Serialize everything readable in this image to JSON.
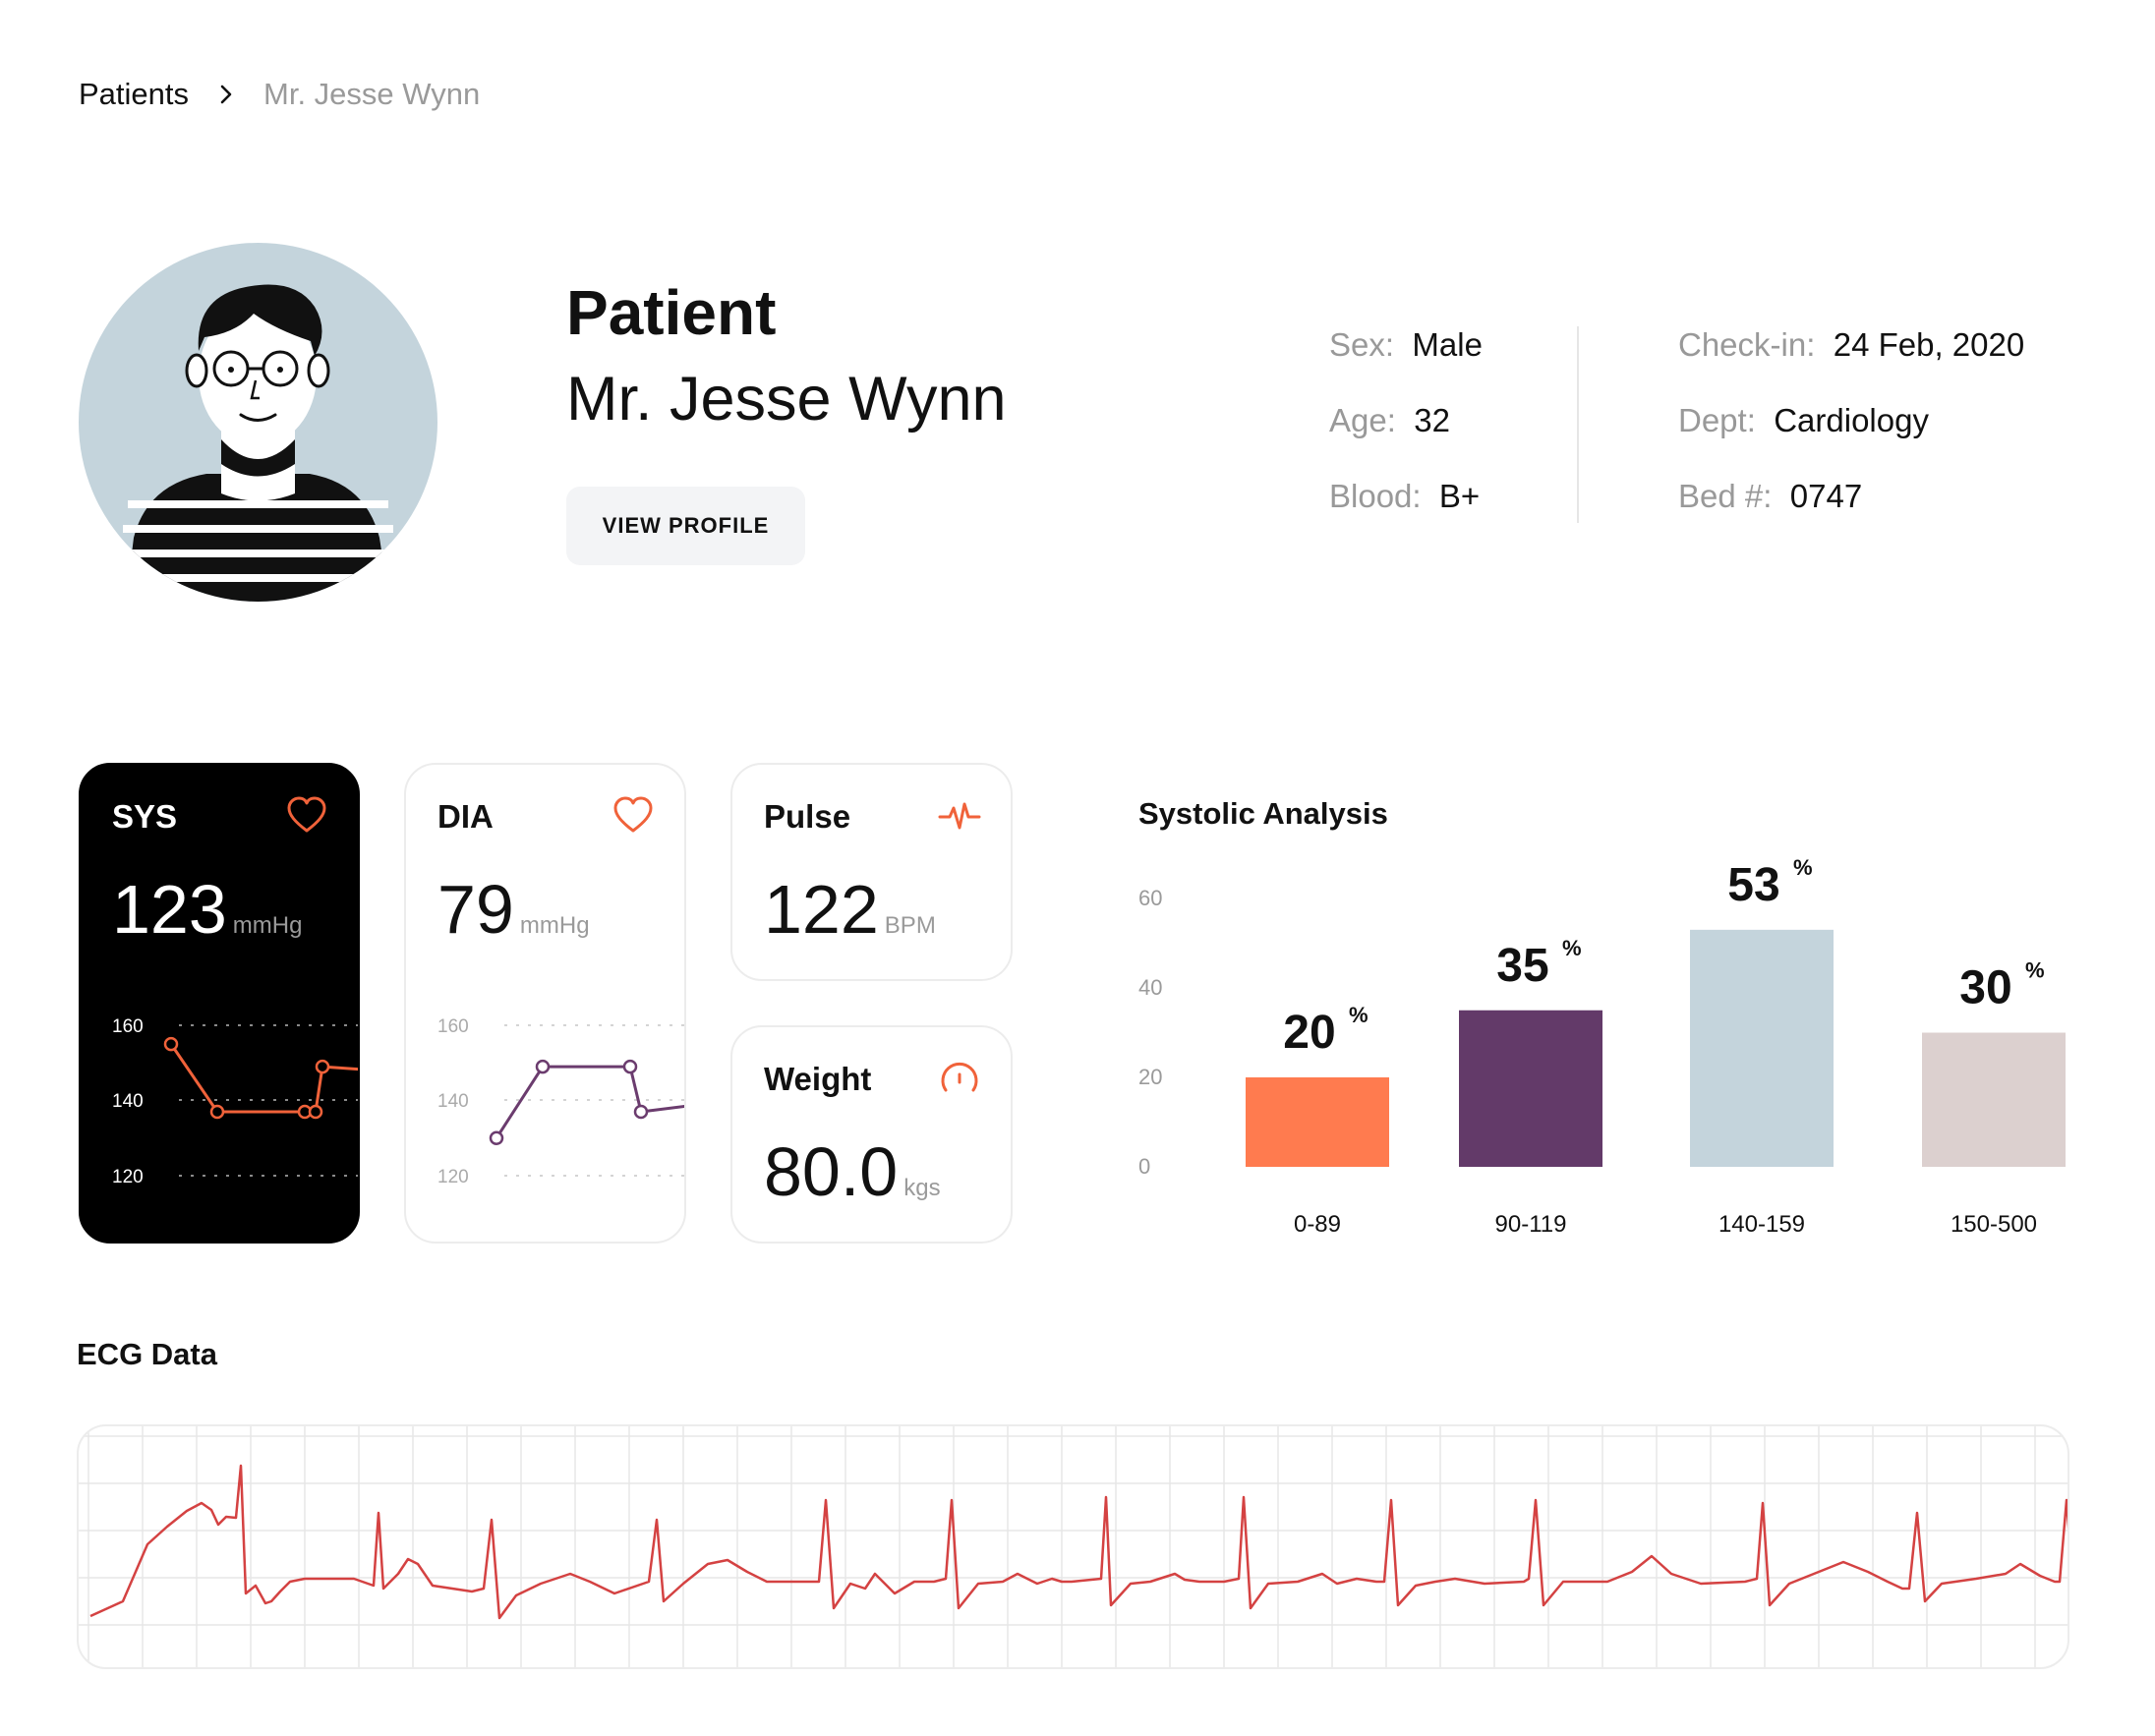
{
  "breadcrumb": {
    "root": "Patients",
    "current": "Mr. Jesse Wynn"
  },
  "patient": {
    "label": "Patient",
    "name": "Mr. Jesse Wynn",
    "view_profile_label": "VIEW PROFILE",
    "info_left": [
      {
        "key": "Sex:",
        "value": "Male"
      },
      {
        "key": "Age:",
        "value": "32"
      },
      {
        "key": "Blood:",
        "value": "B+"
      }
    ],
    "info_right": [
      {
        "key": "Check-in:",
        "value": "24 Feb, 2020"
      },
      {
        "key": "Dept:",
        "value": "Cardiology"
      },
      {
        "key": "Bed #:",
        "value": "0747"
      }
    ]
  },
  "colors": {
    "accent_orange": "#ff7b4f",
    "sys_line": "#f0623a",
    "dia_line": "#6b3c6e",
    "ecg_line": "#d44242",
    "bar_colors": [
      "#ff7b4f",
      "#633a69",
      "#c4d4dc",
      "#dcd0cf"
    ]
  },
  "vitals": {
    "sys": {
      "title": "SYS",
      "value": "123",
      "unit": "mmHg",
      "icon": "heart-icon",
      "ticks": [
        "160",
        "140",
        "120"
      ],
      "series": [
        155,
        137,
        137,
        137,
        149,
        148
      ]
    },
    "dia": {
      "title": "DIA",
      "value": "79",
      "unit": "mmHg",
      "icon": "heart-icon",
      "ticks": [
        "160",
        "140",
        "120"
      ],
      "series": [
        130,
        149,
        149,
        137,
        139
      ]
    },
    "pulse": {
      "title": "Pulse",
      "value": "122",
      "unit": "BPM",
      "icon": "pulse-icon"
    },
    "weight": {
      "title": "Weight",
      "value": "80.0",
      "unit": "kgs",
      "icon": "gauge-icon"
    }
  },
  "chart_data": {
    "type": "bar",
    "title": "Systolic Analysis",
    "categories": [
      "0-89",
      "90-119",
      "140-159",
      "150-500"
    ],
    "values": [
      20,
      35,
      53,
      30
    ],
    "value_labels": [
      "20",
      "35",
      "53",
      "30"
    ],
    "value_unit": "%",
    "y_ticks": [
      "60",
      "40",
      "20",
      "0"
    ],
    "ylim": [
      0,
      60
    ]
  },
  "ecg": {
    "title": "ECG Data"
  }
}
